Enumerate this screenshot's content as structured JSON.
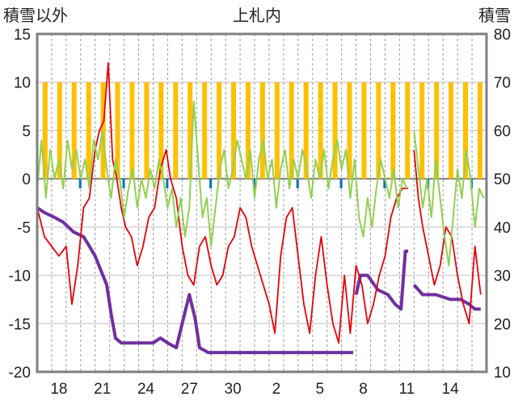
{
  "chart_data": {
    "type": "line",
    "title": "上札内",
    "ylabel_left": "積雪以外",
    "ylabel_right": "積雪",
    "ylim_left": [
      -20,
      15
    ],
    "ylim_right": [
      10,
      80
    ],
    "yticks_left": [
      15,
      10,
      5,
      0,
      -5,
      -10,
      -15,
      -20
    ],
    "yticks_right": [
      80,
      70,
      60,
      50,
      40,
      30,
      20,
      10
    ],
    "xticks": [
      "18",
      "21",
      "24",
      "27",
      "30",
      "2",
      "5",
      "8",
      "11",
      "14"
    ],
    "grid": true,
    "colors": {
      "red": "#e8000b",
      "green": "#92d050",
      "orange": "#ffc000",
      "purple": "#7030a0",
      "blue": "#0070c0",
      "gray": "#7f7f7f"
    },
    "series": [
      {
        "color": "#7030a0",
        "axis": "right",
        "points": [
          [
            16.0,
            44
          ],
          [
            16.5,
            43
          ],
          [
            17.2,
            42
          ],
          [
            17.8,
            41
          ],
          [
            18.5,
            39
          ],
          [
            19.2,
            38
          ],
          [
            19.6,
            36
          ],
          [
            20.0,
            34
          ],
          [
            20.4,
            31
          ],
          [
            20.8,
            28
          ],
          [
            21.1,
            22
          ],
          [
            21.4,
            17
          ],
          [
            21.8,
            16
          ],
          [
            22.5,
            16
          ],
          [
            23.2,
            16
          ],
          [
            24.0,
            16
          ],
          [
            24.5,
            17
          ],
          [
            25.0,
            16
          ],
          [
            25.6,
            15
          ],
          [
            26.0,
            20
          ],
          [
            26.5,
            26
          ],
          [
            26.9,
            21
          ],
          [
            27.2,
            15
          ],
          [
            27.8,
            14
          ],
          [
            29.0,
            14
          ],
          [
            30.5,
            14
          ],
          [
            32.0,
            14
          ],
          [
            33.5,
            14
          ],
          [
            35.0,
            14
          ],
          [
            36.5,
            14
          ],
          [
            37.8,
            14
          ]
        ],
        "segments": [
          [
            [
              38.0,
              26
            ],
            [
              38.3,
              30
            ],
            [
              38.8,
              30
            ],
            [
              39.5,
              27
            ],
            [
              40.2,
              26
            ],
            [
              40.7,
              24
            ],
            [
              41.1,
              23
            ],
            [
              41.4,
              35
            ],
            [
              41.6,
              35
            ]
          ],
          [
            [
              42.0,
              28
            ],
            [
              42.6,
              26
            ],
            [
              43.5,
              26
            ],
            [
              44.5,
              25
            ],
            [
              45.2,
              25
            ],
            [
              45.8,
              24
            ],
            [
              46.2,
              23
            ],
            [
              46.6,
              23
            ]
          ]
        ]
      },
      {
        "color": "#e8000b",
        "axis": "left",
        "points": [
          [
            16.0,
            -3
          ],
          [
            16.5,
            -6
          ],
          [
            17.0,
            -7
          ],
          [
            17.5,
            -8
          ],
          [
            18.0,
            -7
          ],
          [
            18.4,
            -13
          ],
          [
            18.8,
            -9
          ],
          [
            19.2,
            -3
          ],
          [
            19.6,
            -2
          ],
          [
            20.0,
            3
          ],
          [
            20.3,
            5
          ],
          [
            20.6,
            6
          ],
          [
            20.9,
            12
          ],
          [
            21.2,
            2
          ],
          [
            21.5,
            0
          ],
          [
            21.8,
            -3
          ],
          [
            22.1,
            -5
          ],
          [
            22.5,
            -6
          ],
          [
            22.9,
            -9
          ],
          [
            23.3,
            -7
          ],
          [
            23.7,
            -4
          ],
          [
            24.1,
            -3
          ],
          [
            24.5,
            1
          ],
          [
            24.9,
            3
          ],
          [
            25.2,
            0
          ],
          [
            25.6,
            -2
          ],
          [
            26.0,
            -7
          ],
          [
            26.4,
            -10
          ],
          [
            26.8,
            -11
          ],
          [
            27.2,
            -7
          ],
          [
            27.6,
            -6
          ],
          [
            28.0,
            -9
          ],
          [
            28.4,
            -11
          ],
          [
            28.8,
            -10
          ],
          [
            29.2,
            -7
          ],
          [
            29.6,
            -6
          ],
          [
            30.0,
            -3
          ],
          [
            30.4,
            -4
          ],
          [
            30.8,
            -7
          ],
          [
            31.2,
            -9
          ],
          [
            31.6,
            -11
          ],
          [
            32.0,
            -13
          ],
          [
            32.4,
            -16
          ],
          [
            32.8,
            -8
          ],
          [
            33.2,
            -4
          ],
          [
            33.6,
            -3
          ],
          [
            34.0,
            -8
          ],
          [
            34.4,
            -13
          ],
          [
            34.8,
            -16
          ],
          [
            35.2,
            -10
          ],
          [
            35.6,
            -6
          ],
          [
            36.0,
            -11
          ],
          [
            36.4,
            -15
          ],
          [
            36.8,
            -17
          ],
          [
            37.2,
            -10
          ],
          [
            37.6,
            -16
          ],
          [
            38.0,
            -9
          ],
          [
            38.4,
            -11
          ],
          [
            38.8,
            -15
          ],
          [
            39.2,
            -13
          ],
          [
            39.6,
            -10
          ],
          [
            40.0,
            -8
          ],
          [
            40.4,
            -4
          ],
          [
            40.8,
            -2
          ],
          [
            41.2,
            -1
          ],
          [
            41.6,
            -1
          ]
        ],
        "segments": [
          [
            [
              42.0,
              3
            ],
            [
              42.3,
              -2
            ],
            [
              42.6,
              -5
            ],
            [
              43.0,
              -8
            ],
            [
              43.4,
              -11
            ],
            [
              43.8,
              -9
            ],
            [
              44.2,
              -5
            ],
            [
              44.6,
              -6
            ],
            [
              45.0,
              -10
            ],
            [
              45.4,
              -13
            ],
            [
              45.8,
              -15
            ],
            [
              46.2,
              -7
            ],
            [
              46.6,
              -12
            ]
          ]
        ]
      },
      {
        "color": "#92d050",
        "axis": "left",
        "points": [
          [
            16.0,
            -1
          ],
          [
            16.3,
            4
          ],
          [
            16.6,
            -2
          ],
          [
            16.9,
            3
          ],
          [
            17.2,
            0
          ],
          [
            17.5,
            2
          ],
          [
            17.8,
            -1
          ],
          [
            18.1,
            4
          ],
          [
            18.4,
            1
          ],
          [
            18.7,
            3
          ],
          [
            19.0,
            0
          ],
          [
            19.3,
            2
          ],
          [
            19.6,
            -1
          ],
          [
            19.9,
            4
          ],
          [
            20.2,
            2
          ],
          [
            20.5,
            5
          ],
          [
            20.8,
            1
          ],
          [
            21.1,
            -2
          ],
          [
            21.4,
            2
          ],
          [
            21.7,
            0
          ],
          [
            22.0,
            -4
          ],
          [
            22.3,
            -1
          ],
          [
            22.6,
            1
          ],
          [
            22.9,
            -3
          ],
          [
            23.2,
            0
          ],
          [
            23.5,
            -2
          ],
          [
            23.8,
            1
          ],
          [
            24.1,
            -1
          ],
          [
            24.4,
            2
          ],
          [
            24.7,
            0
          ],
          [
            25.0,
            -3
          ],
          [
            25.3,
            -1
          ],
          [
            25.6,
            -5
          ],
          [
            25.9,
            -2
          ],
          [
            26.2,
            -6
          ],
          [
            26.5,
            -3
          ],
          [
            26.8,
            8
          ],
          [
            27.1,
            2
          ],
          [
            27.4,
            -4
          ],
          [
            27.7,
            -2
          ],
          [
            28.0,
            -7
          ],
          [
            28.3,
            -3
          ],
          [
            28.6,
            1
          ],
          [
            28.9,
            3
          ],
          [
            29.2,
            -1
          ],
          [
            29.5,
            1
          ],
          [
            29.8,
            4
          ],
          [
            30.1,
            2
          ],
          [
            30.4,
            0
          ],
          [
            30.7,
            3
          ],
          [
            31.0,
            -2
          ],
          [
            31.3,
            2
          ],
          [
            31.6,
            4
          ],
          [
            31.9,
            0
          ],
          [
            32.2,
            2
          ],
          [
            32.5,
            -3
          ],
          [
            32.8,
            1
          ],
          [
            33.1,
            3
          ],
          [
            33.4,
            -1
          ],
          [
            33.7,
            2
          ],
          [
            34.0,
            0
          ],
          [
            34.3,
            3
          ],
          [
            34.6,
            1
          ],
          [
            34.9,
            -2
          ],
          [
            35.2,
            2
          ],
          [
            35.5,
            0
          ],
          [
            35.8,
            3
          ],
          [
            36.1,
            -1
          ],
          [
            36.4,
            2
          ],
          [
            36.7,
            4
          ],
          [
            37.0,
            1
          ],
          [
            37.3,
            3
          ],
          [
            37.6,
            -2
          ],
          [
            37.9,
            2
          ],
          [
            38.2,
            -4
          ],
          [
            38.5,
            -6
          ],
          [
            38.8,
            -2
          ],
          [
            39.1,
            -5
          ],
          [
            39.4,
            -1
          ],
          [
            39.7,
            2
          ],
          [
            40.0,
            0
          ],
          [
            40.3,
            -2
          ],
          [
            40.6,
            1
          ],
          [
            40.9,
            -3
          ],
          [
            41.2,
            0
          ],
          [
            41.5,
            -1
          ]
        ],
        "segments": [
          [
            [
              42.0,
              5
            ],
            [
              42.3,
              1
            ],
            [
              42.6,
              -3
            ],
            [
              42.9,
              0
            ],
            [
              43.2,
              -4
            ],
            [
              43.5,
              2
            ],
            [
              43.8,
              -2
            ],
            [
              44.1,
              -6
            ],
            [
              44.4,
              -9
            ],
            [
              44.7,
              -4
            ],
            [
              45.0,
              1
            ],
            [
              45.3,
              -2
            ],
            [
              45.6,
              3
            ],
            [
              45.9,
              0
            ],
            [
              46.2,
              -5
            ],
            [
              46.5,
              -1
            ],
            [
              46.8,
              -2
            ]
          ]
        ]
      }
    ]
  }
}
